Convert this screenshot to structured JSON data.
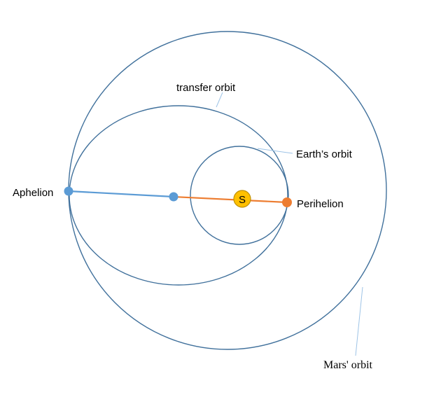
{
  "labels": {
    "transfer_orbit": "transfer orbit",
    "earth_orbit": "Earth’s orbit",
    "mars_orbit": "Mars' orbit",
    "aphelion": "Aphelion",
    "perihelion": "Perihelion",
    "sun": "S"
  },
  "colors": {
    "orbit": "#41719c",
    "aphelion_point": "#5b9bd5",
    "aphelion_line": "#5b9bd5",
    "perihelion_point": "#ed7d31",
    "perihelion_line": "#ed7d31",
    "sun_fill": "#ffc000",
    "sun_stroke": "#bf9000",
    "leader": "#9dc3e6"
  }
}
